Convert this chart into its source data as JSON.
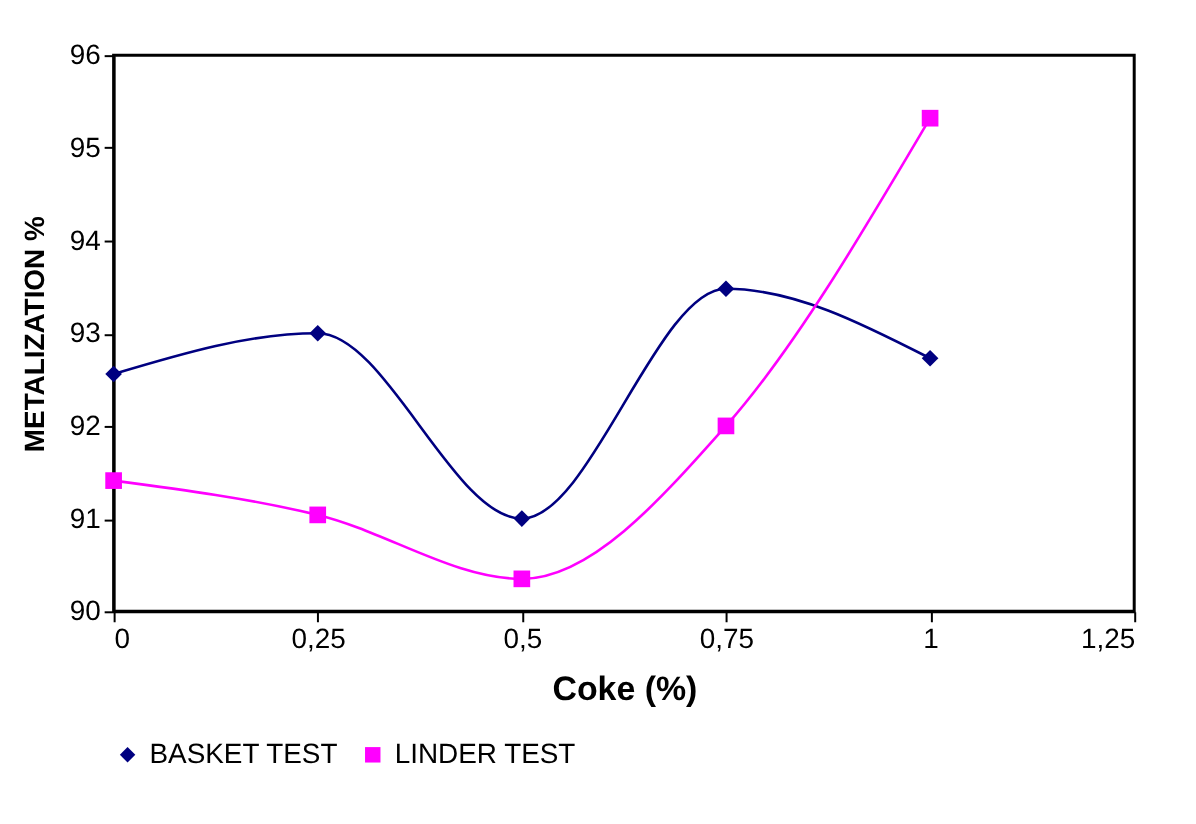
{
  "chart_data": {
    "type": "line",
    "xlabel": "Coke (%)",
    "ylabel": "METALIZATION %",
    "x": [
      0,
      0.25,
      0.5,
      0.75,
      1
    ],
    "series": [
      {
        "name": "BASKET TEST",
        "color": "#000080",
        "marker": "diamond",
        "values": [
          92.56,
          93.0,
          91.0,
          93.48,
          92.73
        ]
      },
      {
        "name": "LINDER TEST",
        "color": "#ff00ff",
        "marker": "square",
        "values": [
          91.41,
          91.04,
          90.35,
          92.0,
          95.32
        ]
      }
    ],
    "xlim": [
      0,
      1.25
    ],
    "xticks": [
      0,
      {
        "value": 0.25,
        "label": "0,25"
      },
      {
        "value": 0.5,
        "label": "0,5"
      },
      {
        "value": 0.75,
        "label": "0,75"
      },
      1,
      {
        "value": 1.25,
        "label": "1,25"
      }
    ],
    "ylim": [
      90,
      96
    ],
    "yticks": [
      90,
      91,
      92,
      93,
      94,
      95,
      96
    ],
    "grid": false,
    "legend": "bottom",
    "line_style": "solid"
  }
}
